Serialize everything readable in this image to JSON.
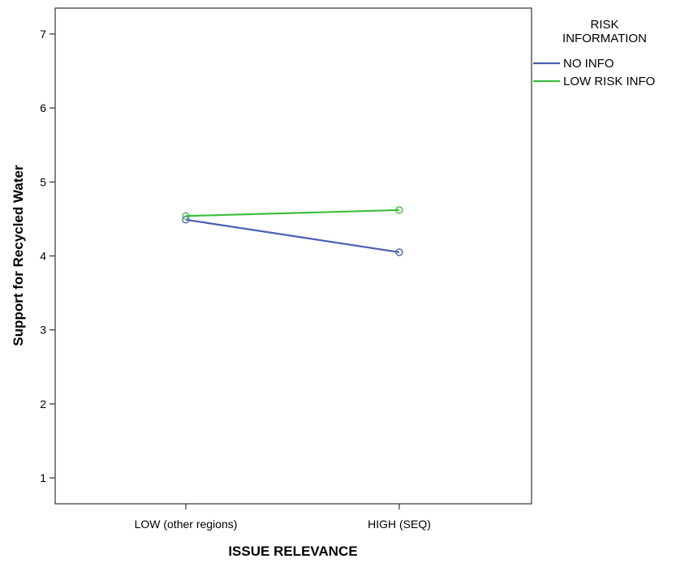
{
  "chart_data": {
    "type": "line",
    "xlabel": "ISSUE RELEVANCE",
    "ylabel": "Support for Recycled Water",
    "categories": [
      "LOW (other regions)",
      "HIGH (SEQ)"
    ],
    "ylim": [
      0.65,
      7.35
    ],
    "yticks": [
      1,
      2,
      3,
      4,
      5,
      6,
      7
    ],
    "grid": false,
    "legend": {
      "title_lines": [
        "RISK",
        "INFORMATION"
      ],
      "placement": "right"
    },
    "series": [
      {
        "name": "NO INFO",
        "color": "#4a5fb5",
        "values": [
          4.49,
          4.05
        ]
      },
      {
        "name": "LOW RISK INFO",
        "color": "#3cbf3c",
        "values": [
          4.54,
          4.62
        ]
      }
    ]
  }
}
